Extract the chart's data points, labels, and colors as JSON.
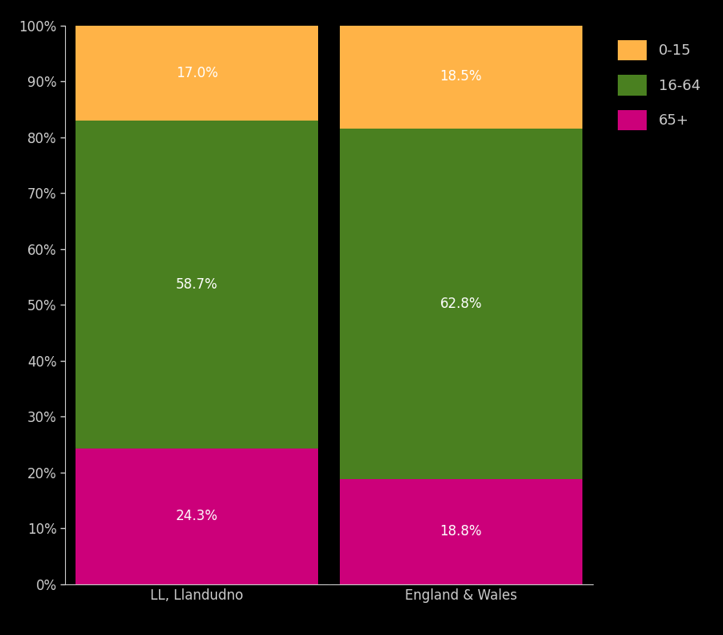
{
  "categories": [
    "LL, Llandudno",
    "England & Wales"
  ],
  "segments": {
    "65+": [
      24.3,
      18.8
    ],
    "16-64": [
      58.7,
      62.8
    ],
    "0-15": [
      17.0,
      18.5
    ]
  },
  "colors": {
    "65+": "#cc007a",
    "16-64": "#4a8020",
    "0-15": "#ffb347"
  },
  "legend_labels": [
    "0-15",
    "16-64",
    "65+"
  ],
  "legend_colors": [
    "#ffb347",
    "#4a8020",
    "#cc007a"
  ],
  "background_color": "#000000",
  "text_color": "#ffffff",
  "axis_label_color": "#cccccc",
  "ylim": [
    0,
    100
  ],
  "ytick_labels": [
    "0%",
    "10%",
    "20%",
    "30%",
    "40%",
    "50%",
    "60%",
    "70%",
    "80%",
    "90%",
    "100%"
  ],
  "ytick_values": [
    0,
    10,
    20,
    30,
    40,
    50,
    60,
    70,
    80,
    90,
    100
  ],
  "label_fontsize": 12,
  "tick_fontsize": 12,
  "legend_fontsize": 13
}
